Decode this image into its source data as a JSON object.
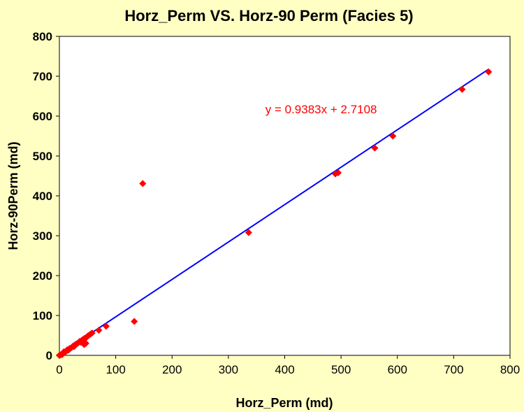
{
  "chart_data": {
    "type": "scatter",
    "title": "Horz_Perm VS. Horz-90 Perm (Facies 5)",
    "xlabel": "Horz_Perm (md)",
    "ylabel": "Horz-90Perm (md)",
    "xlim": [
      0,
      800
    ],
    "ylim": [
      0,
      800
    ],
    "xticks": [
      "0",
      "100",
      "200",
      "300",
      "400",
      "500",
      "600",
      "700",
      "800"
    ],
    "yticks": [
      "0",
      "100",
      "200",
      "300",
      "400",
      "500",
      "600",
      "700",
      "800"
    ],
    "grid": false,
    "legend": "none",
    "points": [
      [
        0,
        0
      ],
      [
        2,
        1
      ],
      [
        4,
        3
      ],
      [
        5,
        2
      ],
      [
        7,
        5
      ],
      [
        8,
        9
      ],
      [
        10,
        8
      ],
      [
        12,
        10
      ],
      [
        14,
        14
      ],
      [
        16,
        13
      ],
      [
        18,
        17
      ],
      [
        20,
        18
      ],
      [
        22,
        20
      ],
      [
        24,
        23
      ],
      [
        26,
        22
      ],
      [
        28,
        27
      ],
      [
        30,
        28
      ],
      [
        32,
        30
      ],
      [
        34,
        32
      ],
      [
        36,
        35
      ],
      [
        38,
        33
      ],
      [
        40,
        38
      ],
      [
        42,
        40
      ],
      [
        44,
        27
      ],
      [
        45,
        43
      ],
      [
        47,
        30
      ],
      [
        48,
        45
      ],
      [
        50,
        48
      ],
      [
        52,
        50
      ],
      [
        55,
        53
      ],
      [
        58,
        56
      ],
      [
        70,
        63
      ],
      [
        83,
        73
      ],
      [
        133,
        85
      ],
      [
        148,
        431
      ],
      [
        336,
        308
      ],
      [
        490,
        455
      ],
      [
        495,
        458
      ],
      [
        560,
        520
      ],
      [
        592,
        550
      ],
      [
        715,
        667
      ],
      [
        762,
        711
      ]
    ],
    "trendline": {
      "slope": 0.9383,
      "intercept": 2.7108,
      "x_range": [
        0,
        762
      ]
    },
    "equation_label": "y = 0.9383x + 2.7108",
    "equation_position_data": [
      440,
      607
    ],
    "colors": {
      "background": "#FFFFC4",
      "plot_area": "#FFFFFF",
      "points": "#FF0000",
      "trendline": "#0000FF",
      "equation": "#FF0000"
    }
  }
}
